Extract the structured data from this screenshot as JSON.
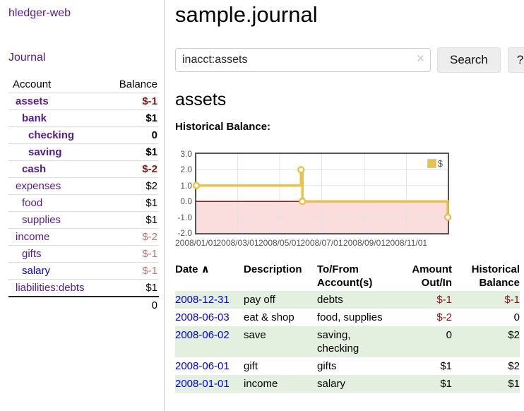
{
  "sidebar": {
    "brand": "hledger-web",
    "journal_link": "Journal",
    "accounts_table": {
      "headers": {
        "account": "Account",
        "balance": "Balance"
      },
      "rows": [
        {
          "name": "assets",
          "indent": 1,
          "bold": true,
          "balance": "$-1",
          "balance_style": "neg",
          "link_style": "purple"
        },
        {
          "name": "bank",
          "indent": 2,
          "bold": true,
          "balance": "$1",
          "balance_style": "pos",
          "link_style": "purple"
        },
        {
          "name": "checking",
          "indent": 3,
          "bold": true,
          "balance": "0",
          "balance_style": "pos",
          "link_style": "purple"
        },
        {
          "name": "saving",
          "indent": 3,
          "bold": true,
          "balance": "$1",
          "balance_style": "pos",
          "link_style": "purple"
        },
        {
          "name": "cash",
          "indent": 2,
          "bold": true,
          "balance": "$-2",
          "balance_style": "neg",
          "link_style": "purple"
        },
        {
          "name": "expenses",
          "indent": 1,
          "bold": false,
          "balance": "$2",
          "balance_style": "pos",
          "link_style": "purple"
        },
        {
          "name": "food",
          "indent": 2,
          "bold": false,
          "balance": "$1",
          "balance_style": "pos",
          "link_style": "purple"
        },
        {
          "name": "supplies",
          "indent": 2,
          "bold": false,
          "balance": "$1",
          "balance_style": "pos",
          "link_style": "purple"
        },
        {
          "name": "income",
          "indent": 1,
          "bold": false,
          "balance": "$-2",
          "balance_style": "dim-neg",
          "link_style": "purple"
        },
        {
          "name": "gifts",
          "indent": 2,
          "bold": false,
          "balance": "$-1",
          "balance_style": "dim-neg",
          "link_style": "purple"
        },
        {
          "name": "salary",
          "indent": 2,
          "bold": false,
          "balance": "$-1",
          "balance_style": "dim-neg",
          "link_style": "blue"
        },
        {
          "name": "liabilities:debts",
          "indent": 1,
          "bold": false,
          "balance": "$1",
          "balance_style": "pos",
          "link_style": "purple"
        }
      ],
      "total": "0"
    }
  },
  "header": {
    "title": "sample.journal"
  },
  "search": {
    "query": "inacct:assets",
    "clear_icon": "×",
    "button_label": "Search",
    "help_label": "?"
  },
  "account_page": {
    "title": "assets",
    "chart_label": "Historical Balance:"
  },
  "chart_data": {
    "type": "line",
    "step": true,
    "title": "Historical Balance:",
    "series": [
      {
        "name": "$",
        "color": "#e8c24a",
        "points": [
          {
            "date": "2008-01-01",
            "value": 1
          },
          {
            "date": "2008-06-01",
            "value": 2
          },
          {
            "date": "2008-06-03",
            "value": 0
          },
          {
            "date": "2008-12-31",
            "value": -1
          }
        ]
      }
    ],
    "x_range": [
      "2008-01-01",
      "2008-12-31"
    ],
    "x_ticks": [
      "2008/01/01",
      "2008/03/01",
      "2008/05/01",
      "2008/07/01",
      "2008/09/01",
      "2008/11/01"
    ],
    "y_ticks": [
      3.0,
      2.0,
      1.0,
      0.0,
      -1.0,
      -2.0
    ],
    "y_tick_labels": [
      "3.0",
      "2.0",
      "1.0",
      "0.0",
      "-1.0",
      "-2.0"
    ],
    "ylim": [
      -2,
      3
    ],
    "grid": true,
    "gridline_color": "#e3e3e3",
    "border_color": "#545454",
    "negative_region_color": "#fbdddd",
    "zero_line_color": "#a00000",
    "marker": {
      "fill": "#ffffff",
      "radius": 4
    },
    "legend": {
      "label": "$",
      "position": "top-right",
      "swatch_color": "#edc240"
    }
  },
  "register_table": {
    "headers": {
      "date": "Date",
      "sort_icon": "∧",
      "description": "Description",
      "accounts": "To/From Account(s)",
      "amount": "Amount Out/In",
      "balance": "Historical Balance"
    },
    "rows": [
      {
        "date": "2008-12-31",
        "description": "pay off",
        "accounts": "debts",
        "amount": "$-1",
        "amount_style": "neg",
        "balance": "$-1",
        "balance_style": "neg",
        "shaded": true
      },
      {
        "date": "2008-06-03",
        "description": "eat & shop",
        "accounts": "food, supplies",
        "amount": "$-2",
        "amount_style": "neg",
        "balance": "0",
        "balance_style": "pos",
        "shaded": false
      },
      {
        "date": "2008-06-02",
        "description": "save",
        "accounts": "saving, checking",
        "amount": "0",
        "amount_style": "pos",
        "balance": "$2",
        "balance_style": "pos",
        "shaded": true
      },
      {
        "date": "2008-06-01",
        "description": "gift",
        "accounts": "gifts",
        "amount": "$1",
        "amount_style": "pos",
        "balance": "$2",
        "balance_style": "pos",
        "shaded": false
      },
      {
        "date": "2008-01-01",
        "description": "income",
        "accounts": "salary",
        "amount": "$1",
        "amount_style": "pos",
        "balance": "$1",
        "balance_style": "pos",
        "shaded": true
      }
    ]
  },
  "colors": {
    "link_purple": "#551a8b",
    "link_blue": "#0000dd",
    "negative": "#8b1212",
    "dim_negative": "#bb7474",
    "row_green": "#e3f0e0",
    "series_yellow": "#e8c24a"
  }
}
